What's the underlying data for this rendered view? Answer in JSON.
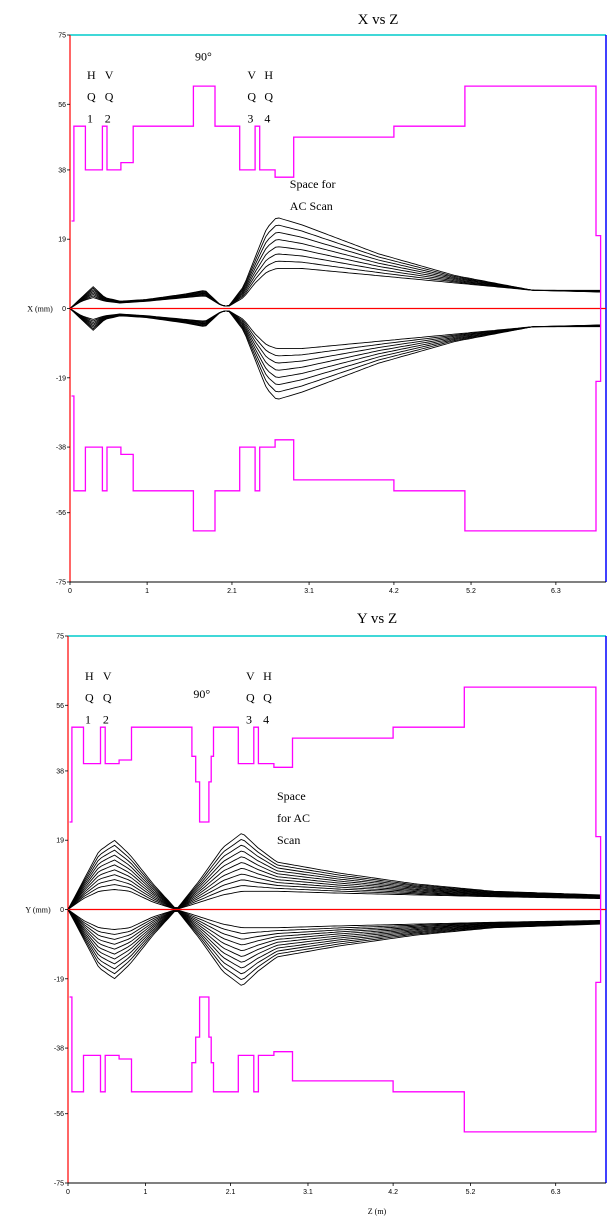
{
  "chart_data": [
    {
      "type": "line",
      "title": "X vs Z",
      "ylabel": "X (mm)",
      "xlabel": "",
      "xlim": [
        0,
        6.95
      ],
      "ylim": [
        -75,
        75
      ],
      "x_ticks": [
        "0",
        "1",
        "2.1",
        "3.1",
        "4.2",
        "5.2",
        "6.3"
      ],
      "x_tick_values": [
        0,
        1.0,
        2.1,
        3.1,
        4.2,
        5.2,
        6.3
      ],
      "y_ticks": [
        "75",
        "56",
        "38",
        "19",
        "0",
        "-19",
        "-38",
        "-56",
        "-75"
      ],
      "y_tick_values": [
        75,
        56,
        38,
        19,
        0,
        -19,
        -38,
        -56,
        -75
      ],
      "aperture_upper": [
        [
          0.02,
          24
        ],
        [
          0.05,
          24
        ],
        [
          0.05,
          50
        ],
        [
          0.2,
          50
        ],
        [
          0.2,
          38
        ],
        [
          0.42,
          38
        ],
        [
          0.42,
          50
        ],
        [
          0.48,
          50
        ],
        [
          0.48,
          38
        ],
        [
          0.66,
          38
        ],
        [
          0.66,
          40
        ],
        [
          0.82,
          40
        ],
        [
          0.82,
          50
        ],
        [
          1.6,
          50
        ],
        [
          1.6,
          61
        ],
        [
          1.88,
          61
        ],
        [
          1.88,
          50
        ],
        [
          2.2,
          50
        ],
        [
          2.2,
          38
        ],
        [
          2.4,
          38
        ],
        [
          2.4,
          50
        ],
        [
          2.46,
          50
        ],
        [
          2.46,
          38
        ],
        [
          2.66,
          38
        ],
        [
          2.66,
          36
        ],
        [
          2.9,
          36
        ],
        [
          2.9,
          47
        ],
        [
          4.2,
          47
        ],
        [
          4.2,
          50
        ],
        [
          5.12,
          50
        ],
        [
          5.12,
          61
        ],
        [
          6.82,
          61
        ],
        [
          6.82,
          20
        ],
        [
          6.88,
          20
        ],
        [
          6.88,
          0
        ]
      ],
      "aperture_lower": [
        [
          0.02,
          -24
        ],
        [
          0.05,
          -24
        ],
        [
          0.05,
          -50
        ],
        [
          0.2,
          -50
        ],
        [
          0.2,
          -38
        ],
        [
          0.42,
          -38
        ],
        [
          0.42,
          -50
        ],
        [
          0.48,
          -50
        ],
        [
          0.48,
          -38
        ],
        [
          0.66,
          -38
        ],
        [
          0.66,
          -40
        ],
        [
          0.82,
          -40
        ],
        [
          0.82,
          -50
        ],
        [
          1.6,
          -50
        ],
        [
          1.6,
          -61
        ],
        [
          1.88,
          -61
        ],
        [
          1.88,
          -50
        ],
        [
          2.2,
          -50
        ],
        [
          2.2,
          -38
        ],
        [
          2.4,
          -38
        ],
        [
          2.4,
          -50
        ],
        [
          2.46,
          -50
        ],
        [
          2.46,
          -38
        ],
        [
          2.66,
          -38
        ],
        [
          2.66,
          -36
        ],
        [
          2.9,
          -36
        ],
        [
          2.9,
          -47
        ],
        [
          4.2,
          -47
        ],
        [
          4.2,
          -50
        ],
        [
          5.12,
          -50
        ],
        [
          5.12,
          -61
        ],
        [
          6.82,
          -61
        ],
        [
          6.82,
          -20
        ],
        [
          6.88,
          -20
        ],
        [
          6.88,
          0
        ]
      ],
      "beam_envelope_outer": [
        [
          0,
          0
        ],
        [
          0.15,
          3
        ],
        [
          0.3,
          6
        ],
        [
          0.45,
          3
        ],
        [
          0.65,
          2
        ],
        [
          1.0,
          2.5
        ],
        [
          1.5,
          4
        ],
        [
          1.75,
          5
        ],
        [
          1.95,
          1
        ],
        [
          2.05,
          0.5
        ],
        [
          2.25,
          6
        ],
        [
          2.4,
          14
        ],
        [
          2.55,
          22
        ],
        [
          2.68,
          25
        ],
        [
          3.0,
          23
        ],
        [
          4.0,
          15
        ],
        [
          5.0,
          9
        ],
        [
          6.0,
          5
        ],
        [
          6.88,
          5
        ]
      ],
      "beam_envelope_inner": [
        [
          0,
          0
        ],
        [
          0.15,
          2
        ],
        [
          0.3,
          3
        ],
        [
          0.45,
          2
        ],
        [
          0.65,
          1.5
        ],
        [
          1.0,
          2
        ],
        [
          1.5,
          3
        ],
        [
          1.75,
          3.5
        ],
        [
          1.95,
          1
        ],
        [
          2.05,
          0.5
        ],
        [
          2.25,
          3
        ],
        [
          2.4,
          7
        ],
        [
          2.55,
          10
        ],
        [
          2.68,
          11
        ],
        [
          3.0,
          11
        ],
        [
          4.0,
          9
        ],
        [
          5.0,
          7
        ],
        [
          6.0,
          5
        ],
        [
          6.88,
          4.5
        ]
      ],
      "beam_ray_count": 8,
      "annotations": [
        {
          "text": "H",
          "x": 0.22,
          "y": 63
        },
        {
          "text": "Q",
          "x": 0.22,
          "y": 57
        },
        {
          "text": "1",
          "x": 0.22,
          "y": 51
        },
        {
          "text": "V",
          "x": 0.45,
          "y": 63
        },
        {
          "text": "Q",
          "x": 0.45,
          "y": 57
        },
        {
          "text": "2",
          "x": 0.45,
          "y": 51
        },
        {
          "text": "90°",
          "x": 1.62,
          "y": 68
        },
        {
          "text": "V",
          "x": 2.3,
          "y": 63
        },
        {
          "text": "Q",
          "x": 2.3,
          "y": 57
        },
        {
          "text": "3",
          "x": 2.3,
          "y": 51
        },
        {
          "text": "H",
          "x": 2.52,
          "y": 63
        },
        {
          "text": "Q",
          "x": 2.52,
          "y": 57
        },
        {
          "text": "4",
          "x": 2.52,
          "y": 51
        },
        {
          "text": "Space for",
          "x": 2.85,
          "y": 33
        },
        {
          "text": "AC Scan",
          "x": 2.85,
          "y": 27
        }
      ],
      "colors": {
        "aperture": "#ff00ff",
        "beam": "#000000",
        "axis_left": "#ff0000",
        "axis_zero": "#ff0000",
        "frame_top": "#00cccc",
        "frame_right": "#0000ff"
      }
    },
    {
      "type": "line",
      "title": "Y vs Z",
      "ylabel": "Y (mm)",
      "xlabel": "Z (m)",
      "xlim": [
        0,
        6.95
      ],
      "ylim": [
        -75,
        75
      ],
      "x_ticks": [
        "0",
        "1",
        "2.1",
        "3.1",
        "4.2",
        "5.2",
        "6.3"
      ],
      "x_tick_values": [
        0,
        1.0,
        2.1,
        3.1,
        4.2,
        5.2,
        6.3
      ],
      "y_ticks": [
        "75",
        "56",
        "38",
        "19",
        "0",
        "-19",
        "-38",
        "-56",
        "-75"
      ],
      "y_tick_values": [
        75,
        56,
        38,
        19,
        0,
        -19,
        -38,
        -56,
        -75
      ],
      "aperture_upper": [
        [
          0.02,
          24
        ],
        [
          0.05,
          24
        ],
        [
          0.05,
          50
        ],
        [
          0.2,
          50
        ],
        [
          0.2,
          40
        ],
        [
          0.42,
          40
        ],
        [
          0.42,
          50
        ],
        [
          0.48,
          50
        ],
        [
          0.48,
          40
        ],
        [
          0.66,
          40
        ],
        [
          0.66,
          41
        ],
        [
          0.82,
          41
        ],
        [
          0.82,
          50
        ],
        [
          1.6,
          50
        ],
        [
          1.6,
          42
        ],
        [
          1.65,
          42
        ],
        [
          1.65,
          35
        ],
        [
          1.7,
          35
        ],
        [
          1.7,
          24
        ],
        [
          1.82,
          24
        ],
        [
          1.82,
          35
        ],
        [
          1.85,
          35
        ],
        [
          1.85,
          42
        ],
        [
          1.88,
          42
        ],
        [
          1.88,
          50
        ],
        [
          2.2,
          50
        ],
        [
          2.2,
          40
        ],
        [
          2.4,
          40
        ],
        [
          2.4,
          50
        ],
        [
          2.46,
          50
        ],
        [
          2.46,
          40
        ],
        [
          2.66,
          40
        ],
        [
          2.66,
          39
        ],
        [
          2.9,
          39
        ],
        [
          2.9,
          47
        ],
        [
          4.2,
          47
        ],
        [
          4.2,
          50
        ],
        [
          5.12,
          50
        ],
        [
          5.12,
          61
        ],
        [
          6.82,
          61
        ],
        [
          6.82,
          20
        ],
        [
          6.88,
          20
        ],
        [
          6.88,
          0
        ]
      ],
      "aperture_lower": [
        [
          0.02,
          -24
        ],
        [
          0.05,
          -24
        ],
        [
          0.05,
          -50
        ],
        [
          0.2,
          -50
        ],
        [
          0.2,
          -40
        ],
        [
          0.42,
          -40
        ],
        [
          0.42,
          -50
        ],
        [
          0.48,
          -50
        ],
        [
          0.48,
          -40
        ],
        [
          0.66,
          -40
        ],
        [
          0.66,
          -41
        ],
        [
          0.82,
          -41
        ],
        [
          0.82,
          -50
        ],
        [
          1.6,
          -50
        ],
        [
          1.6,
          -42
        ],
        [
          1.65,
          -42
        ],
        [
          1.65,
          -35
        ],
        [
          1.7,
          -35
        ],
        [
          1.7,
          -24
        ],
        [
          1.82,
          -24
        ],
        [
          1.82,
          -35
        ],
        [
          1.85,
          -35
        ],
        [
          1.85,
          -42
        ],
        [
          1.88,
          -42
        ],
        [
          1.88,
          -50
        ],
        [
          2.2,
          -50
        ],
        [
          2.2,
          -40
        ],
        [
          2.4,
          -40
        ],
        [
          2.4,
          -50
        ],
        [
          2.46,
          -50
        ],
        [
          2.46,
          -40
        ],
        [
          2.66,
          -40
        ],
        [
          2.66,
          -39
        ],
        [
          2.9,
          -39
        ],
        [
          2.9,
          -47
        ],
        [
          4.2,
          -47
        ],
        [
          4.2,
          -50
        ],
        [
          5.12,
          -50
        ],
        [
          5.12,
          -61
        ],
        [
          6.82,
          -61
        ],
        [
          6.82,
          -20
        ],
        [
          6.88,
          -20
        ],
        [
          6.88,
          0
        ]
      ],
      "beam_envelope_outer": [
        [
          0,
          0
        ],
        [
          0.2,
          8
        ],
        [
          0.4,
          16
        ],
        [
          0.6,
          19
        ],
        [
          0.8,
          15
        ],
        [
          1.1,
          7
        ],
        [
          1.4,
          0
        ],
        [
          1.7,
          8
        ],
        [
          2.0,
          17
        ],
        [
          2.25,
          21
        ],
        [
          2.45,
          17
        ],
        [
          2.7,
          13
        ],
        [
          3.5,
          10
        ],
        [
          4.5,
          7
        ],
        [
          5.5,
          5
        ],
        [
          6.88,
          4
        ]
      ],
      "beam_envelope_inner": [
        [
          0,
          0
        ],
        [
          0.2,
          3
        ],
        [
          0.4,
          5
        ],
        [
          0.6,
          5.5
        ],
        [
          0.8,
          5
        ],
        [
          1.1,
          2
        ],
        [
          1.4,
          0
        ],
        [
          1.7,
          2
        ],
        [
          2.0,
          4
        ],
        [
          2.25,
          5
        ],
        [
          2.45,
          5
        ],
        [
          2.7,
          5
        ],
        [
          3.5,
          4.5
        ],
        [
          4.5,
          4
        ],
        [
          5.5,
          3.5
        ],
        [
          6.88,
          3
        ]
      ],
      "beam_ray_count": 11,
      "annotations": [
        {
          "text": "H",
          "x": 0.22,
          "y": 63
        },
        {
          "text": "Q",
          "x": 0.22,
          "y": 57
        },
        {
          "text": "1",
          "x": 0.22,
          "y": 51
        },
        {
          "text": "V",
          "x": 0.45,
          "y": 63
        },
        {
          "text": "Q",
          "x": 0.45,
          "y": 57
        },
        {
          "text": "2",
          "x": 0.45,
          "y": 51
        },
        {
          "text": "90°",
          "x": 1.62,
          "y": 58
        },
        {
          "text": "V",
          "x": 2.3,
          "y": 63
        },
        {
          "text": "Q",
          "x": 2.3,
          "y": 57
        },
        {
          "text": "3",
          "x": 2.3,
          "y": 51
        },
        {
          "text": "H",
          "x": 2.52,
          "y": 63
        },
        {
          "text": "Q",
          "x": 2.52,
          "y": 57
        },
        {
          "text": "4",
          "x": 2.52,
          "y": 51
        },
        {
          "text": "Space",
          "x": 2.7,
          "y": 30
        },
        {
          "text": "for AC",
          "x": 2.7,
          "y": 24
        },
        {
          "text": "Scan",
          "x": 2.7,
          "y": 18
        }
      ],
      "colors": {
        "aperture": "#ff00ff",
        "beam": "#000000",
        "axis_left": "#ff0000",
        "axis_zero": "#ff0000",
        "frame_top": "#00cccc",
        "frame_right": "#0000ff"
      }
    }
  ]
}
